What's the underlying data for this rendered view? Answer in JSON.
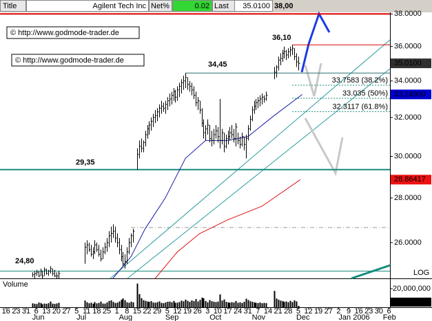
{
  "header": {
    "title": "Title",
    "name": "Agilent Tech Inc",
    "net_label": "Net%",
    "net_value": 0.02,
    "last_label": "Last",
    "last_value": {
      "value": 35.01,
      "label": "35.0100"
    },
    "level": {
      "value": 38,
      "label": "38,00"
    }
  },
  "chart_data": {
    "type": "ohlc",
    "log_scale": true,
    "scale_label": "LOG",
    "volume_label": "Volume",
    "watermarks": [
      "© http://www.godmode-trader.de",
      "© http://www.godmode-trader.de"
    ],
    "xlim": [
      0,
      193.5
    ],
    "xticks": [
      {
        "value": 3,
        "label": "16"
      },
      {
        "value": 8,
        "label": "23"
      },
      {
        "value": 13,
        "label": "31"
      },
      {
        "value": 18,
        "label": "6"
      },
      {
        "value": 23,
        "label": "13"
      },
      {
        "value": 28,
        "label": "20"
      },
      {
        "value": 33,
        "label": "27"
      },
      {
        "value": 38,
        "label": "5"
      },
      {
        "value": 43,
        "label": "11"
      },
      {
        "value": 48,
        "label": "18"
      },
      {
        "value": 53,
        "label": "25"
      },
      {
        "value": 58,
        "label": "1"
      },
      {
        "value": 63,
        "label": "8"
      },
      {
        "value": 68,
        "label": "15"
      },
      {
        "value": 73,
        "label": "22"
      },
      {
        "value": 78,
        "label": "29"
      },
      {
        "value": 83,
        "label": "5"
      },
      {
        "value": 88,
        "label": "12"
      },
      {
        "value": 93,
        "label": "19"
      },
      {
        "value": 98,
        "label": "26"
      },
      {
        "value": 103,
        "label": "3"
      },
      {
        "value": 108,
        "label": "10"
      },
      {
        "value": 113,
        "label": "17"
      },
      {
        "value": 118,
        "label": "24"
      },
      {
        "value": 123,
        "label": "31"
      },
      {
        "value": 128,
        "label": "7"
      },
      {
        "value": 133,
        "label": "14"
      },
      {
        "value": 138,
        "label": "21"
      },
      {
        "value": 143,
        "label": "28"
      },
      {
        "value": 148,
        "label": "5"
      },
      {
        "value": 153,
        "label": "12"
      },
      {
        "value": 158,
        "label": "19"
      },
      {
        "value": 163,
        "label": "27"
      },
      {
        "value": 168,
        "label": "2"
      },
      {
        "value": 173,
        "label": "9"
      },
      {
        "value": 178,
        "label": "16"
      },
      {
        "value": 183,
        "label": "23"
      },
      {
        "value": 188,
        "label": "30"
      },
      {
        "value": 193,
        "label": "6"
      }
    ],
    "months": [
      {
        "value": 16,
        "label": "Jun"
      },
      {
        "value": 38,
        "label": "Jul"
      },
      {
        "value": 59,
        "label": "Aug"
      },
      {
        "value": 82,
        "label": "Sep"
      },
      {
        "value": 104,
        "label": "Oct"
      },
      {
        "value": 125,
        "label": "Nov"
      },
      {
        "value": 147,
        "label": "Dec"
      },
      {
        "value": 168,
        "label": "Jan 2006"
      },
      {
        "value": 190,
        "label": "Feb"
      }
    ],
    "ylim": [
      24.5,
      38.1
    ],
    "yticks": [
      {
        "value": 26,
        "label": "26.0000"
      },
      {
        "value": 28,
        "label": "28.0000"
      },
      {
        "value": 30,
        "label": "30.0000"
      },
      {
        "value": 32,
        "label": "32.0000"
      },
      {
        "value": 34,
        "label": "34.0000"
      },
      {
        "value": 36,
        "label": "36.0000"
      },
      {
        "value": 38,
        "label": "38.0000"
      }
    ],
    "bars": {
      "x": [
        16,
        17,
        18,
        19,
        20,
        21,
        22,
        23,
        24,
        25,
        26,
        27,
        28,
        29,
        42,
        43,
        44,
        45,
        46,
        47,
        48,
        49,
        50,
        51,
        52,
        53,
        54,
        55,
        56,
        57,
        58,
        59,
        60,
        61,
        62,
        63,
        64,
        65,
        66,
        68,
        69,
        70,
        71,
        72,
        73,
        74,
        75,
        76,
        77,
        78,
        79,
        80,
        81,
        82,
        83,
        84,
        85,
        86,
        87,
        88,
        89,
        90,
        91,
        92,
        93,
        94,
        95,
        96,
        97,
        98,
        99,
        100,
        101,
        102,
        103,
        104,
        105,
        106,
        107,
        108,
        109,
        110,
        111,
        112,
        113,
        114,
        115,
        116,
        117,
        118,
        119,
        120,
        121,
        122,
        123,
        124,
        125,
        126,
        127,
        128,
        129,
        130,
        131,
        132,
        136,
        137,
        138,
        139,
        140,
        141,
        142,
        143,
        144,
        145,
        146,
        147,
        148
      ],
      "low": [
        24.55,
        24.5,
        24.6,
        24.55,
        24.6,
        24.5,
        24.6,
        24.65,
        24.6,
        24.7,
        24.6,
        24.55,
        24.5,
        24.5,
        25.1,
        25.5,
        25.6,
        25.4,
        25.3,
        25.5,
        25.6,
        25.4,
        25.2,
        25.3,
        25.5,
        25.6,
        25.8,
        26.0,
        26.2,
        26.0,
        25.8,
        25.5,
        25.2,
        25.0,
        24.9,
        25.1,
        25.5,
        25.8,
        26.0,
        29.35,
        29.9,
        30.2,
        30.2,
        30.5,
        30.9,
        31.1,
        31.3,
        31.5,
        31.7,
        31.8,
        32.0,
        32.2,
        32.3,
        32.2,
        32.4,
        32.6,
        32.7,
        32.9,
        32.8,
        32.9,
        33.1,
        33.3,
        33.5,
        33.6,
        33.5,
        33.4,
        33.2,
        33.0,
        32.6,
        32.4,
        32.2,
        31.5,
        30.9,
        30.8,
        31.1,
        30.7,
        30.5,
        30.6,
        30.9,
        30.7,
        30.4,
        30.6,
        30.2,
        30.4,
        30.6,
        30.8,
        30.9,
        30.7,
        30.5,
        30.6,
        30.4,
        30.5,
        30.3,
        29.9,
        30.8,
        31.3,
        31.8,
        32.2,
        32.4,
        32.5,
        32.6,
        32.7,
        32.8,
        32.9,
        34.1,
        34.2,
        34.6,
        34.9,
        35.1,
        35.3,
        35.2,
        35.3,
        35.4,
        35.5,
        35.2,
        34.8,
        34.6
      ],
      "high": [
        24.75,
        24.8,
        24.85,
        24.8,
        24.9,
        24.8,
        24.95,
        24.9,
        24.85,
        25.0,
        24.9,
        24.85,
        24.75,
        24.8,
        26.0,
        26.1,
        26.0,
        25.9,
        25.8,
        26.1,
        26.0,
        25.9,
        25.7,
        25.8,
        26.0,
        26.2,
        26.5,
        26.7,
        26.8,
        26.7,
        26.4,
        26.2,
        25.9,
        25.6,
        25.5,
        25.8,
        26.2,
        26.4,
        26.6,
        30.4,
        30.8,
        30.9,
        30.8,
        31.3,
        31.6,
        31.8,
        32.0,
        32.2,
        32.4,
        32.5,
        32.7,
        32.9,
        32.8,
        32.9,
        33.1,
        33.3,
        33.4,
        33.6,
        33.5,
        33.7,
        33.9,
        34.1,
        34.3,
        34.45,
        34.2,
        34.0,
        33.9,
        33.7,
        33.4,
        33.1,
        32.9,
        32.5,
        31.9,
        31.6,
        31.9,
        31.6,
        31.3,
        31.4,
        31.6,
        31.5,
        33.0,
        31.4,
        31.2,
        31.1,
        31.3,
        31.5,
        31.6,
        31.4,
        31.7,
        31.2,
        31.0,
        31.2,
        31.0,
        31.1,
        31.6,
        32.1,
        32.6,
        32.9,
        33.0,
        33.1,
        33.2,
        33.3,
        33.2,
        33.4,
        34.8,
        34.9,
        35.4,
        35.6,
        35.8,
        36.0,
        35.8,
        35.9,
        36.0,
        36.1,
        35.9,
        35.6,
        35.4
      ],
      "close": [
        24.65,
        24.7,
        24.75,
        24.6,
        24.8,
        24.6,
        24.85,
        24.7,
        24.8,
        24.9,
        24.7,
        24.6,
        24.6,
        24.7,
        25.8,
        25.9,
        25.7,
        25.5,
        25.6,
        25.9,
        25.7,
        25.5,
        25.3,
        25.6,
        25.8,
        26.0,
        26.3,
        26.4,
        26.5,
        26.2,
        26.0,
        25.7,
        25.4,
        25.1,
        25.2,
        25.6,
        26.0,
        26.3,
        26.5,
        30.1,
        30.5,
        30.4,
        30.7,
        31.1,
        31.4,
        31.6,
        31.8,
        32.0,
        32.1,
        32.3,
        32.5,
        32.6,
        32.5,
        32.7,
        32.9,
        33.0,
        33.2,
        33.4,
        33.1,
        33.5,
        33.7,
        33.9,
        34.0,
        34.2,
        33.8,
        33.7,
        33.5,
        33.2,
        32.8,
        32.9,
        32.4,
        31.7,
        31.2,
        31.4,
        31.6,
        30.9,
        30.8,
        31.1,
        31.3,
        31.0,
        30.8,
        31.2,
        30.5,
        30.9,
        31.0,
        31.2,
        31.1,
        30.9,
        31.5,
        30.8,
        30.6,
        31.0,
        30.6,
        30.9,
        31.4,
        31.9,
        32.4,
        32.6,
        32.8,
        32.9,
        33.0,
        33.1,
        33.0,
        33.2,
        34.5,
        34.8,
        35.2,
        35.3,
        35.6,
        35.7,
        35.5,
        35.7,
        35.8,
        35.9,
        35.4,
        35.1,
        35.01
      ],
      "volume": [
        4200000,
        3800000,
        3500000,
        5100000,
        4600000,
        3300000,
        4000000,
        3700000,
        4400000,
        6200000,
        3900000,
        3600000,
        4100000,
        4800000,
        7200000,
        5400000,
        4300000,
        4900000,
        3800000,
        5600000,
        4200000,
        4700000,
        6100000,
        4000000,
        3900000,
        5200000,
        6800000,
        7400000,
        5800000,
        4600000,
        5000000,
        6300000,
        8100000,
        9500000,
        7700000,
        5400000,
        4800000,
        6000000,
        5300000,
        25500000,
        14200000,
        9800000,
        7600000,
        6900000,
        6200000,
        5800000,
        6600000,
        5100000,
        4900000,
        5500000,
        6300000,
        4700000,
        4400000,
        5200000,
        5900000,
        6100000,
        5400000,
        6800000,
        4800000,
        5000000,
        5600000,
        7100000,
        6400000,
        8200000,
        6900000,
        5800000,
        7400000,
        6600000,
        8800000,
        6200000,
        7900000,
        10400000,
        9600000,
        6800000,
        5400000,
        7700000,
        6500000,
        5900000,
        5600000,
        6100000,
        13800000,
        7200000,
        8400000,
        5800000,
        5200000,
        4900000,
        5500000,
        5100000,
        6700000,
        4800000,
        5300000,
        4600000,
        5900000,
        9200000,
        7800000,
        6400000,
        5900000,
        5200000,
        4800000,
        4500000,
        5100000,
        4300000,
        4700000,
        4400000,
        17600000,
        9400000,
        8100000,
        7200000,
        6600000,
        5800000,
        6200000,
        5400000,
        6900000,
        5600000,
        7400000,
        6300000,
        1481500
      ]
    },
    "averages": [
      {
        "color": "#1a1aa8",
        "x": [
          56,
          65,
          72,
          82,
          92,
          102,
          113,
          123,
          136,
          150
        ],
        "values": [
          24.5,
          25.4,
          26.6,
          28.0,
          29.9,
          30.8,
          30.8,
          31.0,
          32.1,
          33.25
        ]
      },
      {
        "color": "#e01010",
        "x": [
          77,
          88,
          99,
          113,
          130,
          149
        ],
        "values": [
          24.5,
          25.6,
          26.39,
          27.0,
          27.62,
          28.86
        ]
      }
    ],
    "levels": [
      {
        "value": 36.1,
        "label": "36,10",
        "color": "#e00000"
      },
      {
        "value": 34.45,
        "label": "34,45",
        "color": "#2f6f6f"
      },
      {
        "value": 29.35,
        "label": "29,35",
        "color": "#138a7a"
      },
      {
        "value": 24.8,
        "label": "24,80",
        "color": "#138a7a"
      }
    ],
    "fib_color": "#138a7a",
    "fibs": [
      {
        "value": 33.7583,
        "label": "33.7583 (38.2%)"
      },
      {
        "value": 33.035,
        "label": "33.035 (50%)"
      },
      {
        "value": 32.3117,
        "label": "32.3117 (61.8%)"
      }
    ],
    "price_tags": [
      {
        "value": 35.01,
        "label": "35.0100",
        "color": "#303030"
      },
      {
        "value": 33.249,
        "label": "33.24900",
        "color": "#0000d0"
      },
      {
        "value": 28.86417,
        "label": "28.86417",
        "color": "#ee1111"
      }
    ],
    "vlim": [
      0,
      29600000
    ],
    "vticks": [
      {
        "value": 20000000,
        "label": "20,000,000"
      }
    ],
    "volume_tag": {
      "value": 1481500,
      "label": "1,481,500"
    }
  }
}
